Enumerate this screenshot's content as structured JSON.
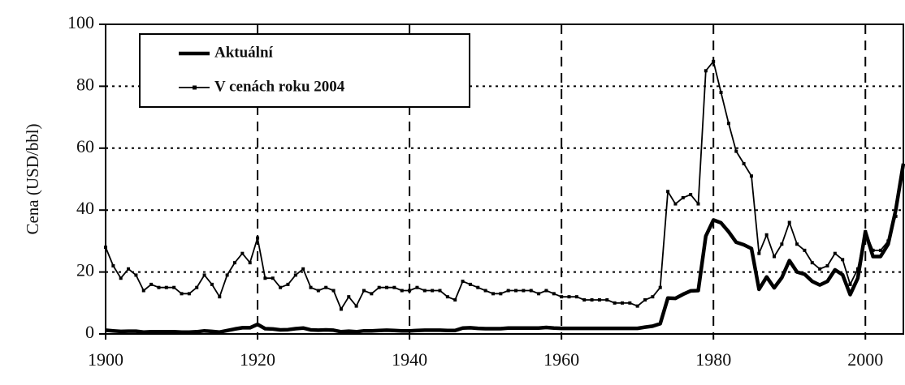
{
  "chart_data": {
    "type": "line",
    "y_label": "Cena (USD/bbl)",
    "x": [
      1900,
      1901,
      1902,
      1903,
      1904,
      1905,
      1906,
      1907,
      1908,
      1909,
      1910,
      1911,
      1912,
      1913,
      1914,
      1915,
      1916,
      1917,
      1918,
      1919,
      1920,
      1921,
      1922,
      1923,
      1924,
      1925,
      1926,
      1927,
      1928,
      1929,
      1930,
      1931,
      1932,
      1933,
      1934,
      1935,
      1936,
      1937,
      1938,
      1939,
      1940,
      1941,
      1942,
      1943,
      1944,
      1945,
      1946,
      1947,
      1948,
      1949,
      1950,
      1951,
      1952,
      1953,
      1954,
      1955,
      1956,
      1957,
      1958,
      1959,
      1960,
      1961,
      1962,
      1963,
      1964,
      1965,
      1966,
      1967,
      1968,
      1969,
      1970,
      1971,
      1972,
      1973,
      1974,
      1975,
      1976,
      1977,
      1978,
      1979,
      1980,
      1981,
      1982,
      1983,
      1984,
      1985,
      1986,
      1987,
      1988,
      1989,
      1990,
      1991,
      1992,
      1993,
      1994,
      1995,
      1996,
      1997,
      1998,
      1999,
      2000,
      2001,
      2002,
      2003,
      2004,
      2005
    ],
    "series": [
      {
        "name": "Aktuální",
        "color": "#000000",
        "values": [
          1.2,
          1.0,
          0.8,
          0.9,
          0.9,
          0.6,
          0.7,
          0.7,
          0.7,
          0.7,
          0.6,
          0.6,
          0.7,
          1.0,
          0.8,
          0.6,
          1.1,
          1.6,
          2.0,
          2.0,
          3.1,
          1.7,
          1.6,
          1.3,
          1.4,
          1.7,
          1.9,
          1.3,
          1.2,
          1.3,
          1.2,
          0.7,
          0.9,
          0.7,
          1.0,
          1.0,
          1.1,
          1.2,
          1.1,
          1.0,
          1.0,
          1.1,
          1.2,
          1.2,
          1.2,
          1.1,
          1.1,
          1.9,
          2.0,
          1.8,
          1.7,
          1.7,
          1.7,
          1.9,
          1.9,
          1.9,
          1.9,
          1.9,
          2.1,
          1.9,
          1.8,
          1.8,
          1.8,
          1.8,
          1.8,
          1.8,
          1.8,
          1.8,
          1.8,
          1.8,
          1.8,
          2.2,
          2.5,
          3.3,
          11.6,
          11.5,
          12.8,
          13.9,
          14.0,
          31.6,
          36.8,
          35.9,
          33.0,
          29.6,
          28.8,
          27.6,
          14.4,
          18.4,
          14.9,
          18.2,
          23.7,
          20.0,
          19.3,
          17.0,
          15.8,
          17.0,
          20.7,
          19.1,
          12.7,
          18.0,
          33.0,
          25.0,
          25.0,
          29.0,
          40.0,
          55.0
        ]
      },
      {
        "name": "V cenách roku 2004",
        "color": "#000000",
        "values": [
          28,
          22,
          18,
          21,
          19,
          14,
          16,
          15,
          15,
          15,
          13,
          13,
          15,
          19,
          16,
          12,
          19,
          23,
          26,
          23,
          31,
          18,
          18,
          15,
          16,
          19,
          21,
          15,
          14,
          15,
          14,
          8,
          12,
          9,
          14,
          13,
          15,
          15,
          15,
          14,
          14,
          15,
          14,
          14,
          14,
          12,
          11,
          17,
          16,
          15,
          14,
          13,
          13,
          14,
          14,
          14,
          14,
          13,
          14,
          13,
          12,
          12,
          12,
          11,
          11,
          11,
          11,
          10,
          10,
          10,
          9,
          11,
          12,
          15,
          46,
          42,
          44,
          45,
          42,
          85,
          88,
          78,
          68,
          59,
          55,
          51,
          26,
          32,
          25,
          29,
          36,
          29,
          27,
          23,
          21,
          22,
          26,
          24,
          16,
          21,
          33,
          27,
          27,
          30,
          38,
          null
        ]
      }
    ],
    "xlim": [
      1900,
      2005
    ],
    "xticks": [
      1900,
      1920,
      1940,
      1960,
      1980,
      2000
    ],
    "ylim": [
      0,
      100
    ],
    "yticks": [
      0,
      20,
      40,
      60,
      80,
      100
    ],
    "grid": true,
    "legend": "upper left"
  }
}
